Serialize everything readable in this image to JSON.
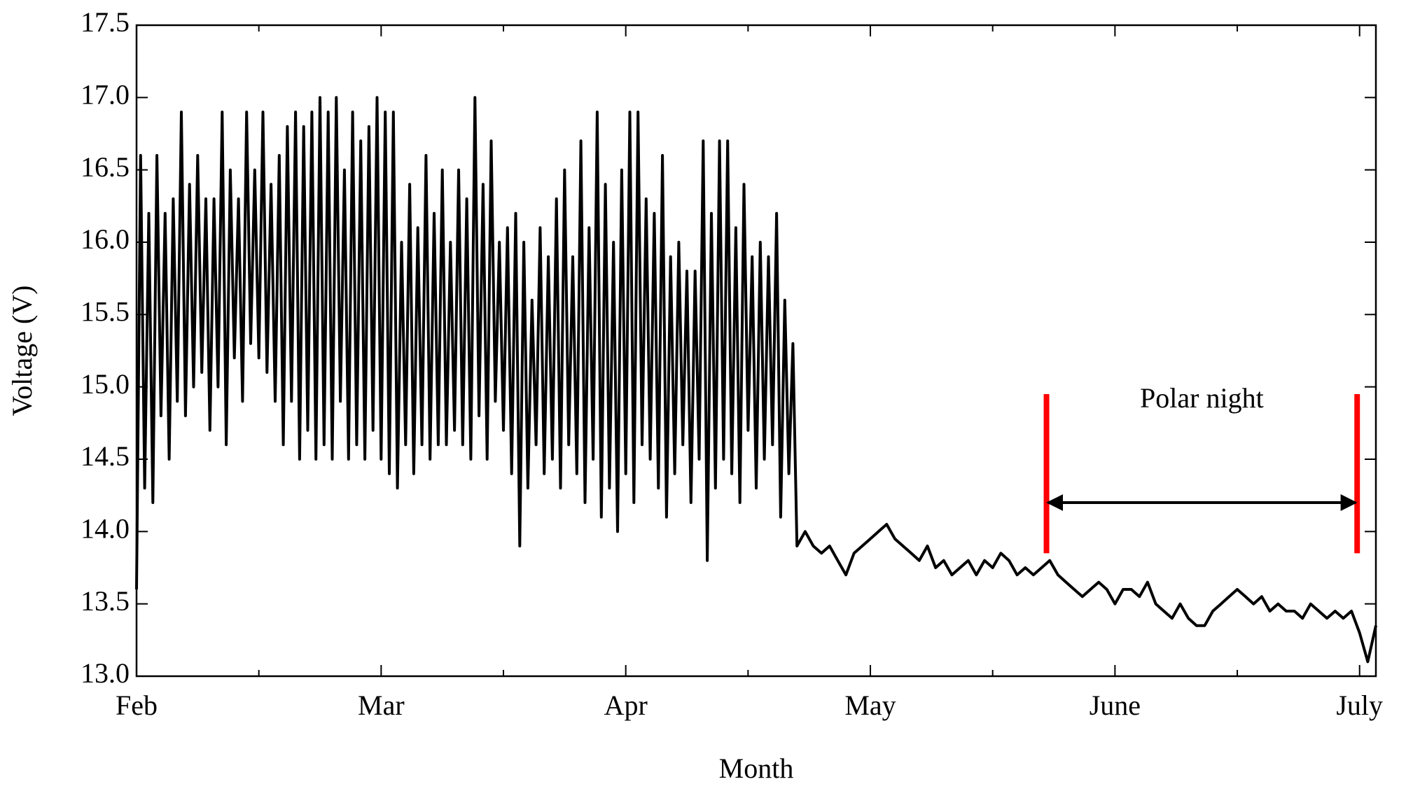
{
  "chart_data": {
    "type": "line",
    "x_label": "Month",
    "y_label": "Voltage (V)",
    "color": "#000000",
    "xlim": [
      0,
      152
    ],
    "ylim": [
      13.0,
      17.5
    ],
    "xticks": [
      {
        "value": 0,
        "label": "Feb"
      },
      {
        "value": 30,
        "label": "Mar"
      },
      {
        "value": 60,
        "label": "Apr"
      },
      {
        "value": 90,
        "label": "May"
      },
      {
        "value": 120,
        "label": "June"
      },
      {
        "value": 150,
        "label": "July"
      }
    ],
    "xminorticks": [
      15,
      45,
      75,
      105,
      135
    ],
    "yticks": [
      {
        "value": 13,
        "label": "13.0"
      },
      13.5,
      {
        "value": 14,
        "label": "14.0"
      },
      14.5,
      {
        "value": 15,
        "label": "15.0"
      },
      15.5,
      {
        "value": 16,
        "label": "16.0"
      },
      16.5,
      {
        "value": 17,
        "label": "17.0"
      },
      17.5
    ],
    "annotation": {
      "text": "Polar night",
      "x_start": 111.6,
      "x_end": 149.7,
      "y_range": [
        13.85,
        14.95
      ],
      "arrow_y": 14.2,
      "color": "#ff0000"
    },
    "x": [
      0,
      0.5,
      1,
      1.5,
      2,
      2.5,
      3,
      3.5,
      4,
      4.5,
      5,
      5.5,
      6,
      6.5,
      7,
      7.5,
      8,
      8.5,
      9,
      9.5,
      10,
      10.5,
      11,
      11.5,
      12,
      12.5,
      13,
      13.5,
      14,
      14.5,
      15,
      15.5,
      16,
      16.5,
      17,
      17.5,
      18,
      18.5,
      19,
      19.5,
      20,
      20.5,
      21,
      21.5,
      22,
      22.5,
      23,
      23.5,
      24,
      24.5,
      25,
      25.5,
      26,
      26.5,
      27,
      27.5,
      28,
      28.5,
      29,
      29.5,
      30,
      30.5,
      31,
      31.5,
      32,
      32.5,
      33,
      33.5,
      34,
      34.5,
      35,
      35.5,
      36,
      36.5,
      37,
      37.5,
      38,
      38.5,
      39,
      39.5,
      40,
      40.5,
      41,
      41.5,
      42,
      42.5,
      43,
      43.5,
      44,
      44.5,
      45,
      45.5,
      46,
      46.5,
      47,
      47.5,
      48,
      48.5,
      49,
      49.5,
      50,
      50.5,
      51,
      51.5,
      52,
      52.5,
      53,
      53.5,
      54,
      54.5,
      55,
      55.5,
      56,
      56.5,
      57,
      57.5,
      58,
      58.5,
      59,
      59.5,
      60,
      60.5,
      61,
      61.5,
      62,
      62.5,
      63,
      63.5,
      64,
      64.5,
      65,
      65.5,
      66,
      66.5,
      67,
      67.5,
      68,
      68.5,
      69,
      69.5,
      70,
      70.5,
      71,
      71.5,
      72,
      72.5,
      73,
      73.5,
      74,
      74.5,
      75,
      75.5,
      76,
      76.5,
      77,
      77.5,
      78,
      78.5,
      79,
      79.5,
      80,
      80.5,
      81,
      82,
      83,
      84,
      85,
      86,
      87,
      88,
      89,
      90,
      91,
      92,
      93,
      94,
      95,
      96,
      97,
      98,
      99,
      100,
      101,
      102,
      103,
      104,
      105,
      106,
      107,
      108,
      109,
      110,
      111,
      112,
      113,
      114,
      115,
      116,
      117,
      118,
      119,
      120,
      121,
      122,
      123,
      124,
      125,
      126,
      127,
      128,
      129,
      130,
      131,
      132,
      133,
      134,
      135,
      136,
      137,
      138,
      139,
      140,
      141,
      142,
      143,
      144,
      145,
      146,
      147,
      148,
      149,
      150,
      151,
      152
    ],
    "values": [
      13.6,
      16.6,
      14.3,
      16.2,
      14.2,
      16.6,
      14.8,
      16.2,
      14.5,
      16.3,
      14.9,
      16.9,
      14.8,
      16.4,
      15.0,
      16.6,
      15.1,
      16.3,
      14.7,
      16.3,
      15.0,
      16.9,
      14.6,
      16.5,
      15.2,
      16.3,
      14.9,
      16.9,
      15.3,
      16.5,
      15.2,
      16.9,
      15.1,
      16.4,
      14.9,
      16.6,
      14.6,
      16.8,
      14.9,
      16.9,
      14.5,
      16.8,
      14.7,
      16.9,
      14.5,
      17.0,
      14.6,
      16.9,
      14.5,
      17.0,
      14.9,
      16.5,
      14.5,
      16.9,
      14.6,
      16.7,
      14.5,
      16.8,
      14.7,
      17.0,
      14.5,
      16.9,
      14.4,
      16.9,
      14.3,
      16.0,
      14.6,
      16.4,
      14.4,
      16.1,
      14.6,
      16.6,
      14.5,
      16.2,
      14.6,
      16.5,
      14.6,
      16.0,
      14.7,
      16.5,
      14.6,
      16.3,
      14.5,
      17.0,
      14.8,
      16.4,
      14.5,
      16.7,
      14.9,
      16.0,
      14.7,
      16.1,
      14.4,
      16.2,
      13.9,
      16.0,
      14.3,
      15.6,
      14.6,
      16.1,
      14.4,
      15.9,
      14.5,
      16.3,
      14.3,
      16.5,
      14.6,
      15.9,
      14.4,
      16.7,
      14.2,
      16.1,
      14.5,
      16.9,
      14.1,
      16.4,
      14.3,
      16.0,
      14.0,
      16.5,
      14.4,
      16.9,
      14.2,
      16.9,
      14.6,
      16.3,
      14.5,
      16.2,
      14.3,
      16.6,
      14.1,
      15.9,
      14.4,
      16.0,
      14.6,
      15.8,
      14.2,
      15.8,
      14.5,
      16.7,
      13.8,
      16.2,
      14.3,
      16.7,
      14.5,
      16.7,
      14.4,
      16.1,
      14.2,
      16.4,
      14.7,
      15.9,
      14.3,
      16.0,
      14.5,
      15.9,
      14.6,
      16.2,
      14.1,
      15.6,
      14.4,
      15.3,
      13.9,
      14.0,
      13.9,
      13.85,
      13.9,
      13.8,
      13.7,
      13.85,
      13.9,
      13.95,
      14.0,
      14.05,
      13.95,
      13.9,
      13.85,
      13.8,
      13.9,
      13.75,
      13.8,
      13.7,
      13.75,
      13.8,
      13.7,
      13.8,
      13.75,
      13.85,
      13.8,
      13.7,
      13.75,
      13.7,
      13.75,
      13.8,
      13.7,
      13.65,
      13.6,
      13.55,
      13.6,
      13.65,
      13.6,
      13.5,
      13.6,
      13.6,
      13.55,
      13.65,
      13.5,
      13.45,
      13.4,
      13.5,
      13.4,
      13.35,
      13.35,
      13.45,
      13.5,
      13.55,
      13.6,
      13.55,
      13.5,
      13.55,
      13.45,
      13.5,
      13.45,
      13.45,
      13.4,
      13.5,
      13.45,
      13.4,
      13.45,
      13.4,
      13.45,
      13.3,
      13.1,
      13.35
    ]
  }
}
